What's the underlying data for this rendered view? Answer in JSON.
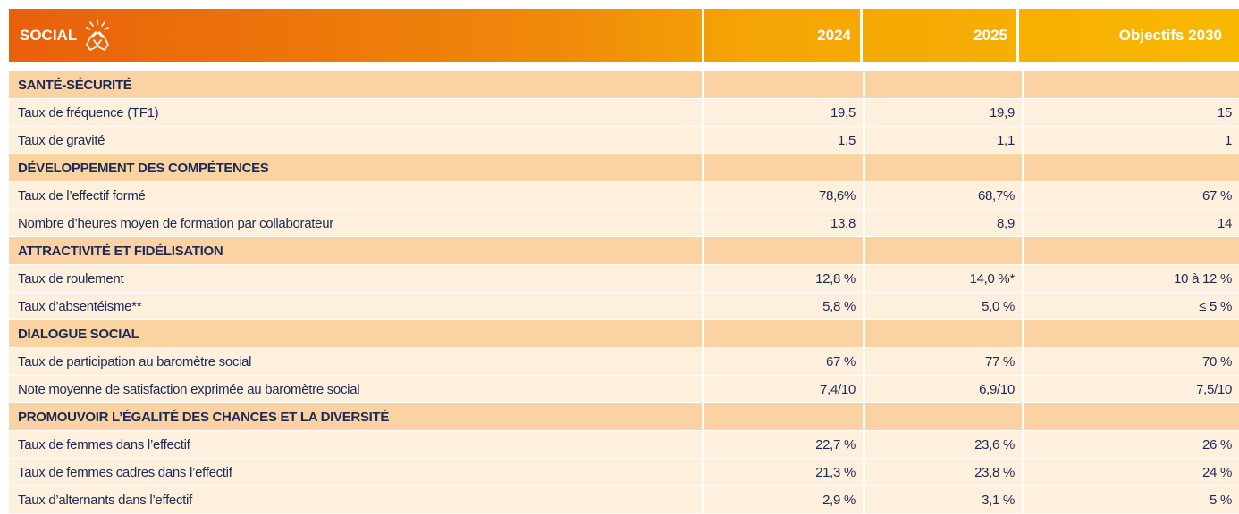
{
  "header": {
    "title": "SOCIAL",
    "columns": [
      "2024",
      "2025",
      "Objectifs 2030"
    ]
  },
  "sections": [
    {
      "title": "SANTÉ-SÉCURITÉ",
      "rows": [
        [
          "Taux de fréquence (TF1)",
          "19,5",
          "19,9",
          "15"
        ],
        [
          "Taux de gravité",
          "1,5",
          "1,1",
          "1"
        ]
      ]
    },
    {
      "title": "DÉVELOPPEMENT DES COMPÉTENCES",
      "rows": [
        [
          "Taux de l’effectif formé",
          "78,6%",
          "68,7%",
          "67 %"
        ],
        [
          "Nombre d’heures moyen de formation par collaborateur",
          "13,8",
          "8,9",
          "14"
        ]
      ]
    },
    {
      "title": "ATTRACTIVITÉ ET FIDÉLISATION",
      "rows": [
        [
          "Taux de roulement",
          "12,8 %",
          "14,0 %*",
          "10 à 12 %"
        ],
        [
          "Taux d’absentéisme**",
          "5,8 %",
          "5,0 %",
          "≤ 5 %"
        ]
      ]
    },
    {
      "title": "DIALOGUE SOCIAL",
      "rows": [
        [
          "Taux de participation au baromètre social",
          "67 %",
          "77 %",
          "70 %"
        ],
        [
          "Note moyenne de satisfaction exprimée au baromètre social",
          "7,4/10",
          "6,9/10",
          "7,5/10"
        ]
      ]
    },
    {
      "title": "PROMOUVOIR L’ÉGALITÉ DES CHANCES ET LA DIVERSITÉ",
      "rows": [
        [
          "Taux de femmes dans l’effectif",
          "22,7 %",
          "23,6 %",
          "26 %"
        ],
        [
          "Taux de femmes cadres dans l’effectif",
          "21,3 %",
          "23,8 %",
          "24 %"
        ],
        [
          "Taux d’alternants dans l’effectif",
          "2,9 %",
          "3,1 %",
          "5 %"
        ]
      ]
    }
  ]
}
